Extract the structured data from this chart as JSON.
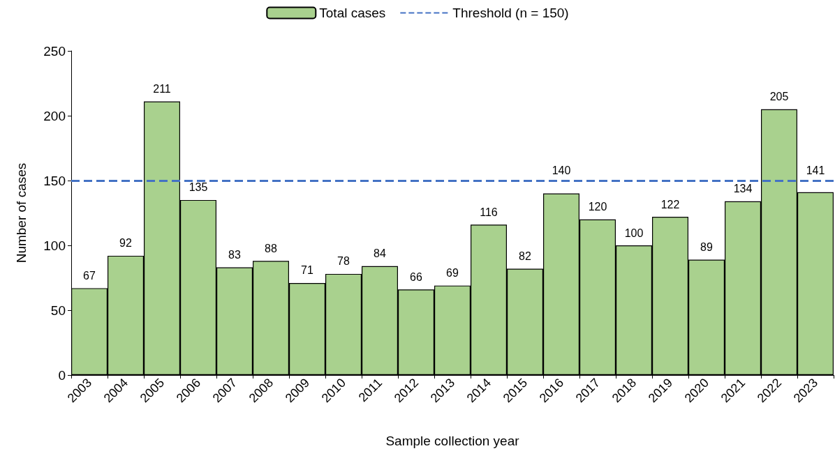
{
  "chart_data": {
    "type": "bar",
    "xlabel": "Sample collection year",
    "ylabel": "Number of cases",
    "categories": [
      "2003",
      "2004",
      "2005",
      "2006",
      "2007",
      "2008",
      "2009",
      "2010",
      "2011",
      "2012",
      "2013",
      "2014",
      "2015",
      "2016",
      "2017",
      "2018",
      "2019",
      "2020",
      "2021",
      "2022",
      "2023"
    ],
    "series": [
      {
        "name": "Total cases",
        "color": "#a9d18e",
        "values": [
          67,
          92,
          211,
          135,
          83,
          88,
          71,
          78,
          84,
          66,
          69,
          116,
          82,
          140,
          120,
          100,
          122,
          89,
          134,
          205,
          141
        ]
      }
    ],
    "ylim": [
      0,
      250
    ],
    "yticks": [
      0,
      50,
      100,
      150,
      200,
      250
    ],
    "grid": false,
    "legend": "top",
    "data_labels": true,
    "ref_lines": [
      {
        "axis": "y",
        "value": 150,
        "label": "Threshold (n = 150)",
        "color": "#4472c4",
        "line_style": "dashed"
      }
    ]
  }
}
